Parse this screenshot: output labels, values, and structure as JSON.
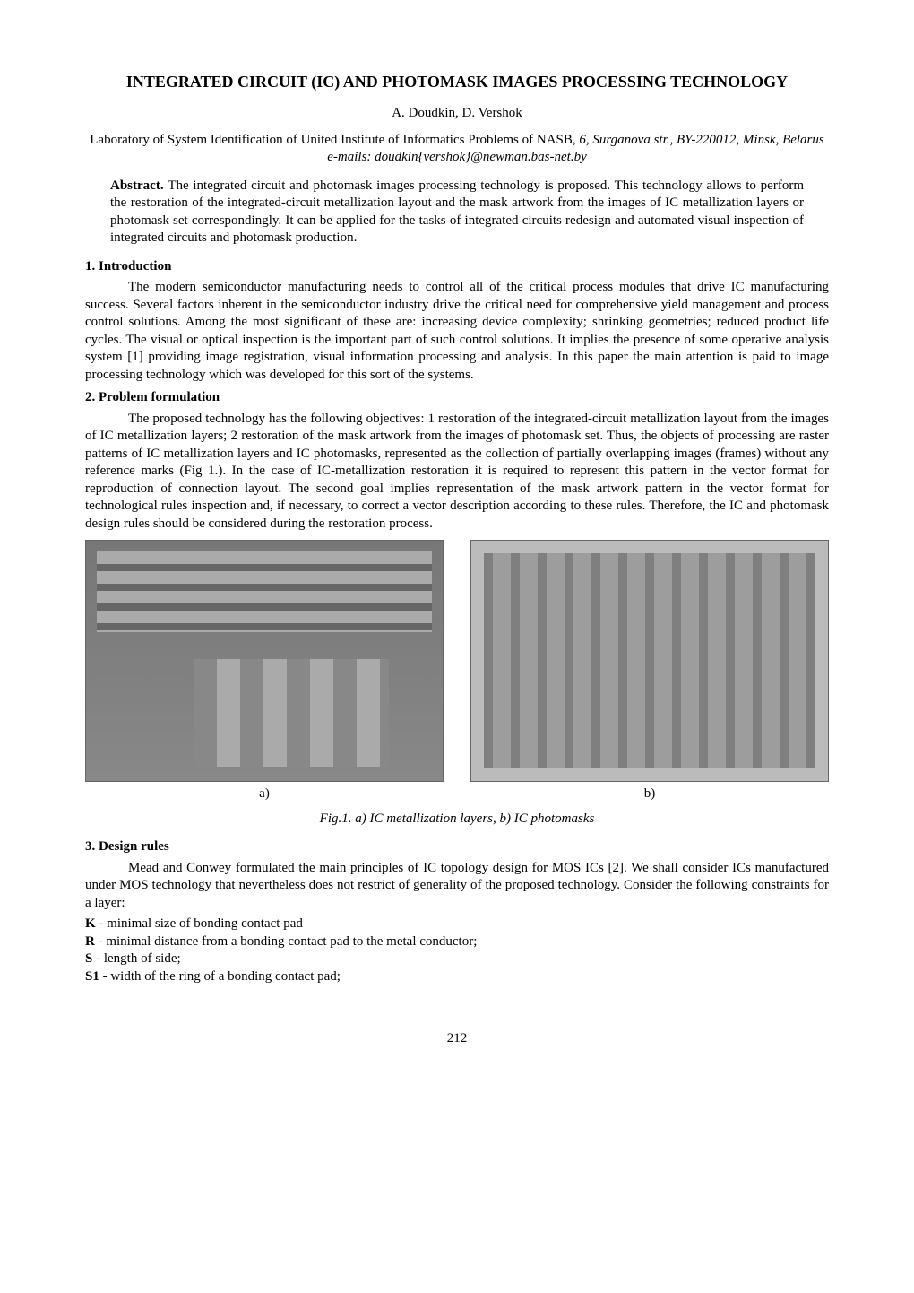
{
  "title": "INTEGRATED CIRCUIT (IC) AND PHOTOMASK IMAGES PROCESSING TECHNOLOGY",
  "authors": "A. Doudkin, D. Vershok",
  "affiliation_plain": "Laboratory of System Identification of United Institute of Informatics Problems of NASB, ",
  "affiliation_italic": "6, Surganova str., BY-220012, Minsk, Belarus e-mails: doudkin{vershok}@newman.bas-net.by",
  "abstract_label": "Abstract. ",
  "abstract_text": "The integrated circuit and photomask images processing technology is proposed. This technology allows to perform the restoration of the integrated-circuit metallization layout and the mask artwork from the images of IC metallization layers or photomask set correspondingly. It can be applied for the tasks of integrated circuits redesign and automated visual inspection of integrated circuits and photomask production.",
  "sections": {
    "s1": {
      "heading": "1. Introduction",
      "para": "The modern semiconductor manufacturing needs to control all of the critical process modules that drive IC manufacturing success. Several factors inherent in the semiconductor industry drive the critical need for comprehensive yield management and process control solutions. Among the most significant of these are: increasing device complexity; shrinking geometries; reduced product life cycles. The visual or optical inspection is the important part of such control solutions. It implies the presence of some operative analysis system [1] providing image registration, visual information processing and analysis. In this paper the main attention is paid to image processing technology which was developed for this sort of the systems."
    },
    "s2": {
      "heading": "2. Problem formulation",
      "para": "The proposed technology has the following objectives: 1 restoration of the integrated-circuit metallization layout from the images of IC metallization layers; 2 restoration of the mask artwork from the images of photomask set. Thus, the objects of processing are raster patterns of IC metallization layers and IC photomasks, represented as the collection of partially overlapping images (frames) without any reference marks (Fig 1.). In the case of IC-metallization restoration it is required to represent this pattern in the vector format for reproduction of connection layout. The second goal implies representation of the mask artwork pattern in the vector format for technological rules inspection and, if necessary, to correct a vector description according to these rules. Therefore, the IC and photomask design rules should be considered during the restoration process."
    },
    "s3": {
      "heading": "3. Design rules",
      "para": "Mead and Conwey formulated the main principles of IC topology design for MOS ICs [2]. We shall consider ICs manufactured under MOS technology that nevertheless does not restrict of generality of the proposed technology. Consider the following constraints for a layer:"
    }
  },
  "figure": {
    "label_a": "a)",
    "label_b": "b)",
    "caption": "Fig.1.  a) IC metallization layers, b) IC photomasks"
  },
  "rules": [
    {
      "key": "K",
      "desc": " - minimal size of bonding contact pad"
    },
    {
      "key": "R",
      "desc": " - minimal distance from a bonding contact pad to the metal conductor;"
    },
    {
      "key": "S",
      "desc": " -  length of side;"
    },
    {
      "key": "S1",
      "desc": " - width of the ring of a bonding contact pad;"
    }
  ],
  "page_number": "212"
}
